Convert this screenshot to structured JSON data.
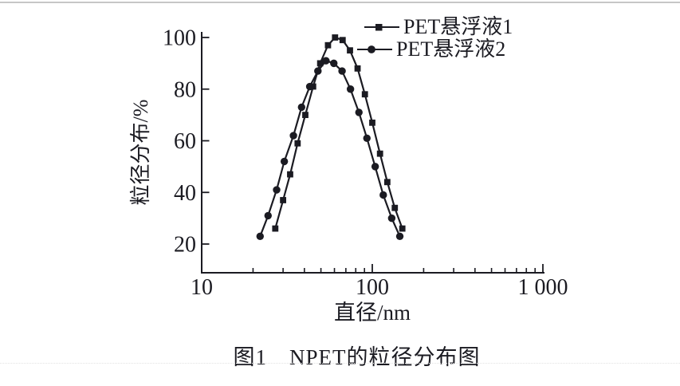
{
  "figure": {
    "caption": "图1　NPET的粒径分布图"
  },
  "colors": {
    "ink": "#1b1b22",
    "rule": "#c6c6c6",
    "background": "#ffffff"
  },
  "chart_data": {
    "type": "line",
    "title": "",
    "xlabel": "直径/nm",
    "ylabel": "粒径分布/%",
    "x_scale": "log",
    "xlim": [
      10,
      1000
    ],
    "ylim": [
      9,
      102
    ],
    "grid": false,
    "legend_position": "top-right",
    "x_ticks_major": [
      10,
      100,
      1000
    ],
    "x_tick_labels": [
      "10",
      "100",
      "1 000"
    ],
    "x_ticks_minor": [
      20,
      30,
      40,
      50,
      60,
      70,
      80,
      90,
      200,
      300,
      400,
      500,
      600,
      700,
      800,
      900
    ],
    "y_ticks": [
      20,
      40,
      60,
      80,
      100
    ],
    "series": [
      {
        "name": "PET悬浮液1",
        "marker": "square",
        "color": "#1b1b22",
        "x": [
          27,
          30,
          33,
          36.5,
          40.5,
          45,
          49.5,
          55,
          60.5,
          67,
          74,
          82,
          90.5,
          100,
          111,
          122.5,
          135.5,
          150
        ],
        "y": [
          26,
          37,
          47,
          59,
          70,
          81,
          90,
          97,
          100,
          99,
          95,
          88,
          78,
          67,
          55,
          44,
          34,
          26
        ]
      },
      {
        "name": "PET悬浮液2",
        "marker": "circle",
        "color": "#1b1b22",
        "x": [
          22,
          24.5,
          27.5,
          30.5,
          34.5,
          38.5,
          43,
          48,
          53.5,
          59.5,
          66.5,
          74.5,
          83.5,
          93,
          104,
          116,
          130,
          145
        ],
        "y": [
          23,
          31,
          41,
          52,
          62,
          73,
          81,
          87,
          91,
          90,
          87,
          80,
          71,
          61,
          50,
          39,
          30,
          23
        ]
      }
    ]
  }
}
